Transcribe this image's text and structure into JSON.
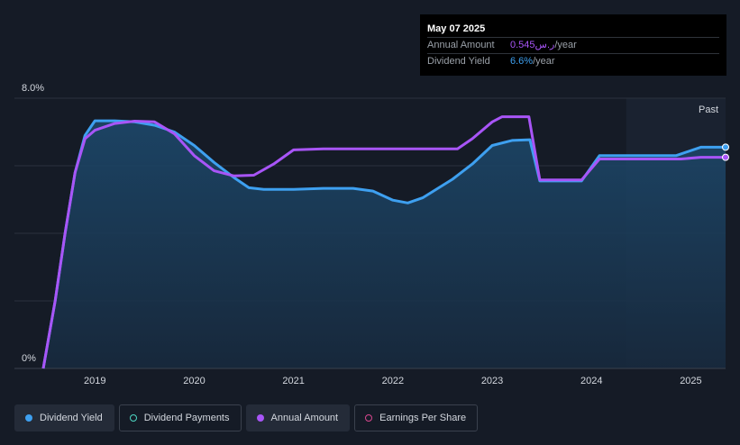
{
  "tooltip": {
    "date": "May 07 2025",
    "amount_label": "Annual Amount",
    "amount_value": "0.545",
    "amount_currency": "ر.س",
    "amount_unit": "/year",
    "yield_label": "Dividend Yield",
    "yield_value": "6.6%",
    "yield_unit": "/year"
  },
  "past_label": "Past",
  "legend": [
    {
      "label": "Dividend Yield"
    },
    {
      "label": "Dividend Payments"
    },
    {
      "label": "Annual Amount"
    },
    {
      "label": "Earnings Per Share"
    }
  ],
  "colors": {
    "yield": "#3ea0f0",
    "amount": "#a855f7",
    "payments": "#4ed7c4",
    "eps": "#d9478f",
    "background": "#151b26"
  },
  "chart_data": {
    "type": "line",
    "ylim": [
      0,
      8
    ],
    "xlim": [
      2018.48,
      2025.35
    ],
    "y_tick_labels": [
      {
        "value": 8,
        "label": "8.0%"
      },
      {
        "value": 0,
        "label": "0%"
      }
    ],
    "y_gridlines": [
      8,
      6,
      4,
      2
    ],
    "x_tick_labels": [
      {
        "value": 2019,
        "label": "2019"
      },
      {
        "value": 2020,
        "label": "2020"
      },
      {
        "value": 2021,
        "label": "2021"
      },
      {
        "value": 2022,
        "label": "2022"
      },
      {
        "value": 2023,
        "label": "2023"
      },
      {
        "value": 2024,
        "label": "2024"
      },
      {
        "value": 2025,
        "label": "2025"
      }
    ],
    "past_region_start": 2024.35,
    "series": [
      {
        "name": "Dividend Yield",
        "points": [
          [
            2018.48,
            0
          ],
          [
            2018.6,
            2.0
          ],
          [
            2018.7,
            4.0
          ],
          [
            2018.8,
            5.8
          ],
          [
            2018.9,
            6.9
          ],
          [
            2019.0,
            7.33
          ],
          [
            2019.2,
            7.33
          ],
          [
            2019.4,
            7.3
          ],
          [
            2019.6,
            7.2
          ],
          [
            2019.8,
            7.0
          ],
          [
            2020.0,
            6.6
          ],
          [
            2020.2,
            6.1
          ],
          [
            2020.4,
            5.65
          ],
          [
            2020.55,
            5.35
          ],
          [
            2020.7,
            5.3
          ],
          [
            2021.0,
            5.3
          ],
          [
            2021.3,
            5.33
          ],
          [
            2021.6,
            5.33
          ],
          [
            2021.8,
            5.25
          ],
          [
            2022.0,
            4.98
          ],
          [
            2022.15,
            4.9
          ],
          [
            2022.3,
            5.05
          ],
          [
            2022.6,
            5.6
          ],
          [
            2022.8,
            6.05
          ],
          [
            2023.0,
            6.6
          ],
          [
            2023.2,
            6.75
          ],
          [
            2023.38,
            6.77
          ],
          [
            2023.48,
            5.55
          ],
          [
            2023.6,
            5.55
          ],
          [
            2023.9,
            5.55
          ],
          [
            2024.08,
            6.3
          ],
          [
            2024.3,
            6.3
          ],
          [
            2024.6,
            6.3
          ],
          [
            2024.85,
            6.3
          ],
          [
            2025.1,
            6.55
          ],
          [
            2025.35,
            6.55
          ]
        ]
      },
      {
        "name": "Annual Amount",
        "points": [
          [
            2018.48,
            0
          ],
          [
            2018.6,
            2.0
          ],
          [
            2018.7,
            4.0
          ],
          [
            2018.8,
            5.8
          ],
          [
            2018.9,
            6.8
          ],
          [
            2019.0,
            7.05
          ],
          [
            2019.2,
            7.25
          ],
          [
            2019.4,
            7.32
          ],
          [
            2019.6,
            7.3
          ],
          [
            2019.8,
            6.95
          ],
          [
            2020.0,
            6.3
          ],
          [
            2020.2,
            5.85
          ],
          [
            2020.4,
            5.7
          ],
          [
            2020.6,
            5.72
          ],
          [
            2020.8,
            6.05
          ],
          [
            2021.0,
            6.47
          ],
          [
            2021.3,
            6.5
          ],
          [
            2021.8,
            6.5
          ],
          [
            2022.3,
            6.5
          ],
          [
            2022.65,
            6.5
          ],
          [
            2022.8,
            6.8
          ],
          [
            2023.0,
            7.3
          ],
          [
            2023.1,
            7.45
          ],
          [
            2023.37,
            7.45
          ],
          [
            2023.48,
            5.58
          ],
          [
            2023.6,
            5.58
          ],
          [
            2023.9,
            5.58
          ],
          [
            2024.08,
            6.2
          ],
          [
            2024.3,
            6.2
          ],
          [
            2024.6,
            6.2
          ],
          [
            2024.9,
            6.2
          ],
          [
            2025.1,
            6.25
          ],
          [
            2025.35,
            6.25
          ]
        ]
      }
    ]
  }
}
